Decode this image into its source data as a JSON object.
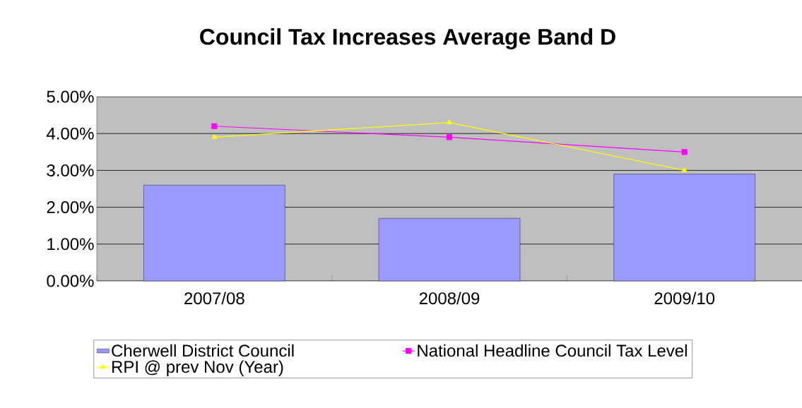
{
  "chart_data": {
    "type": "bar",
    "title": "Council Tax Increases Average Band D",
    "categories": [
      "2007/08",
      "2008/09",
      "2009/10"
    ],
    "series": [
      {
        "name": "Cherwell District Council",
        "color": "#9999ff",
        "values": [
          2.6,
          1.7,
          2.9
        ]
      },
      {
        "name": "National Headline Council Tax Level",
        "type": "line",
        "marker": "square",
        "color": "#ff00ff",
        "values": [
          4.2,
          3.9,
          3.5
        ]
      },
      {
        "name": "RPI @ prev Nov (Year)",
        "type": "line",
        "marker": "triangle",
        "color": "#ffff00",
        "values": [
          3.9,
          4.3,
          3.0
        ]
      }
    ],
    "ylim": [
      0,
      5
    ],
    "yticks": [
      {
        "value": 0,
        "label": "0.00%"
      },
      {
        "value": 1,
        "label": "1.00%"
      },
      {
        "value": 2,
        "label": "2.00%"
      },
      {
        "value": 3,
        "label": "3.00%"
      },
      {
        "value": 4,
        "label": "4.00%"
      },
      {
        "value": 5,
        "label": "5.00%"
      }
    ],
    "grid": "y",
    "legend": "bottom"
  }
}
